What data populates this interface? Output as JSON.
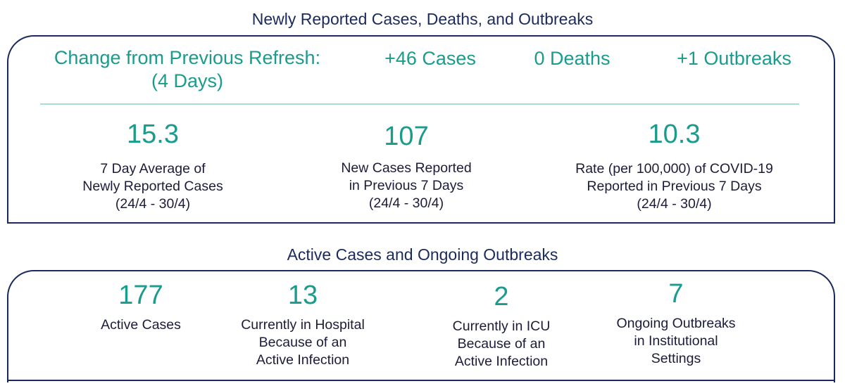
{
  "newly_reported": {
    "title": "Newly Reported Cases, Deaths, and Outbreaks",
    "change": {
      "label_line1": "Change from Previous Refresh:",
      "label_line2": "(4 Days)",
      "cases": "+46 Cases",
      "deaths": "0 Deaths",
      "outbreaks": "+1 Outbreaks"
    },
    "metrics": [
      {
        "value": "15.3",
        "line1": "7 Day Average of",
        "line2": "Newly Reported Cases",
        "line3": "(24/4 - 30/4)"
      },
      {
        "value": "107",
        "line1": "New Cases Reported",
        "line2": "in Previous 7 Days",
        "line3": "(24/4 - 30/4)"
      },
      {
        "value": "10.3",
        "line1": "Rate (per 100,000) of COVID-19",
        "line2": "Reported in Previous 7 Days",
        "line3": "(24/4 - 30/4)"
      }
    ]
  },
  "active": {
    "title": "Active Cases and Ongoing Outbreaks",
    "metrics": [
      {
        "value": "177",
        "line1": "Active Cases",
        "line2": "",
        "line3": ""
      },
      {
        "value": "13",
        "line1": "Currently in Hospital",
        "line2": "Because of an",
        "line3": "Active Infection"
      },
      {
        "value": "2",
        "line1": "Currently in ICU",
        "line2": "Because of an",
        "line3": "Active Infection"
      },
      {
        "value": "7",
        "line1": "Ongoing Outbreaks",
        "line2": "in Institutional",
        "line3": "Settings"
      }
    ]
  },
  "colors": {
    "navy": "#1b2a5c",
    "teal": "#1a9b8c",
    "divider": "#a8ddd2"
  }
}
